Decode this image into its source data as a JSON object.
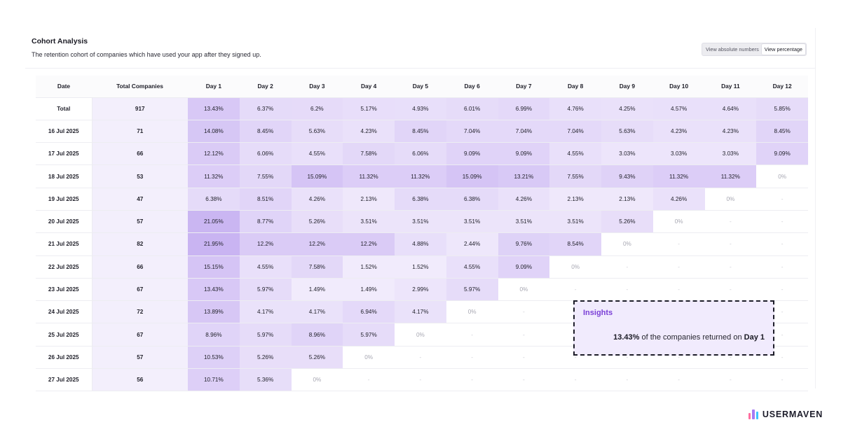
{
  "card": {
    "title": "Cohort Analysis",
    "subtitle": "The retention cohort of companies which have used your app after they signed up."
  },
  "view_toggle": {
    "options": [
      "View absolute numbers",
      "View percentage"
    ],
    "selected": "View percentage"
  },
  "table": {
    "columns": [
      "Date",
      "Total Companies",
      "Day 1",
      "Day 2",
      "Day 3",
      "Day 4",
      "Day 5",
      "Day 6",
      "Day 7",
      "Day 8",
      "Day 9",
      "Day 10",
      "Day 11",
      "Day 12"
    ],
    "rows": [
      {
        "date": "Total",
        "total": "917",
        "values": [
          "13.43%",
          "6.37%",
          "6.2%",
          "5.17%",
          "4.93%",
          "6.01%",
          "6.99%",
          "4.76%",
          "4.25%",
          "4.57%",
          "4.64%",
          "5.85%"
        ]
      },
      {
        "date": "16 Jul 2025",
        "total": "71",
        "values": [
          "14.08%",
          "8.45%",
          "5.63%",
          "4.23%",
          "8.45%",
          "7.04%",
          "7.04%",
          "7.04%",
          "5.63%",
          "4.23%",
          "4.23%",
          "8.45%"
        ]
      },
      {
        "date": "17 Jul 2025",
        "total": "66",
        "values": [
          "12.12%",
          "6.06%",
          "4.55%",
          "7.58%",
          "6.06%",
          "9.09%",
          "9.09%",
          "4.55%",
          "3.03%",
          "3.03%",
          "3.03%",
          "9.09%"
        ]
      },
      {
        "date": "18 Jul 2025",
        "total": "53",
        "values": [
          "11.32%",
          "7.55%",
          "15.09%",
          "11.32%",
          "11.32%",
          "15.09%",
          "13.21%",
          "7.55%",
          "9.43%",
          "11.32%",
          "11.32%",
          "0%"
        ]
      },
      {
        "date": "19 Jul 2025",
        "total": "47",
        "values": [
          "6.38%",
          "8.51%",
          "4.26%",
          "2.13%",
          "6.38%",
          "6.38%",
          "4.26%",
          "2.13%",
          "2.13%",
          "4.26%",
          "0%",
          "-"
        ]
      },
      {
        "date": "20 Jul 2025",
        "total": "57",
        "values": [
          "21.05%",
          "8.77%",
          "5.26%",
          "3.51%",
          "3.51%",
          "3.51%",
          "3.51%",
          "3.51%",
          "5.26%",
          "0%",
          "-",
          "-"
        ]
      },
      {
        "date": "21 Jul 2025",
        "total": "82",
        "values": [
          "21.95%",
          "12.2%",
          "12.2%",
          "12.2%",
          "4.88%",
          "2.44%",
          "9.76%",
          "8.54%",
          "0%",
          "-",
          "-",
          "-"
        ]
      },
      {
        "date": "22 Jul 2025",
        "total": "66",
        "values": [
          "15.15%",
          "4.55%",
          "7.58%",
          "1.52%",
          "1.52%",
          "4.55%",
          "9.09%",
          "0%",
          "-",
          "-",
          "-",
          "-"
        ]
      },
      {
        "date": "23 Jul 2025",
        "total": "67",
        "values": [
          "13.43%",
          "5.97%",
          "1.49%",
          "1.49%",
          "2.99%",
          "5.97%",
          "0%",
          "-",
          "-",
          "-",
          "-",
          "-"
        ]
      },
      {
        "date": "24 Jul 2025",
        "total": "72",
        "values": [
          "13.89%",
          "4.17%",
          "4.17%",
          "6.94%",
          "4.17%",
          "0%",
          "-",
          "-",
          "-",
          "-",
          "-",
          "-"
        ]
      },
      {
        "date": "25 Jul 2025",
        "total": "67",
        "values": [
          "8.96%",
          "5.97%",
          "8.96%",
          "5.97%",
          "0%",
          "-",
          "-",
          "-",
          "-",
          "-",
          "-",
          "-"
        ]
      },
      {
        "date": "26 Jul 2025",
        "total": "57",
        "values": [
          "10.53%",
          "5.26%",
          "5.26%",
          "0%",
          "-",
          "-",
          "-",
          "-",
          "-",
          "-",
          "-",
          "-"
        ]
      },
      {
        "date": "27 Jul 2025",
        "total": "56",
        "values": [
          "10.71%",
          "5.36%",
          "0%",
          "-",
          "-",
          "-",
          "-",
          "-",
          "-",
          "-",
          "-",
          "-"
        ]
      }
    ]
  },
  "insights": {
    "title": "Insights",
    "highlight": "13.43%",
    "text": "of the companies returned on",
    "day": "Day 1"
  },
  "brand": {
    "name": "USERMAVEN",
    "colors": [
      "#ff6fa0",
      "#a77bf3",
      "#3ec3ff"
    ]
  },
  "colors": {
    "heat_base": "#ffffff",
    "heat_max": "#c9b4f2",
    "insight_accent": "#7a3fd6"
  }
}
